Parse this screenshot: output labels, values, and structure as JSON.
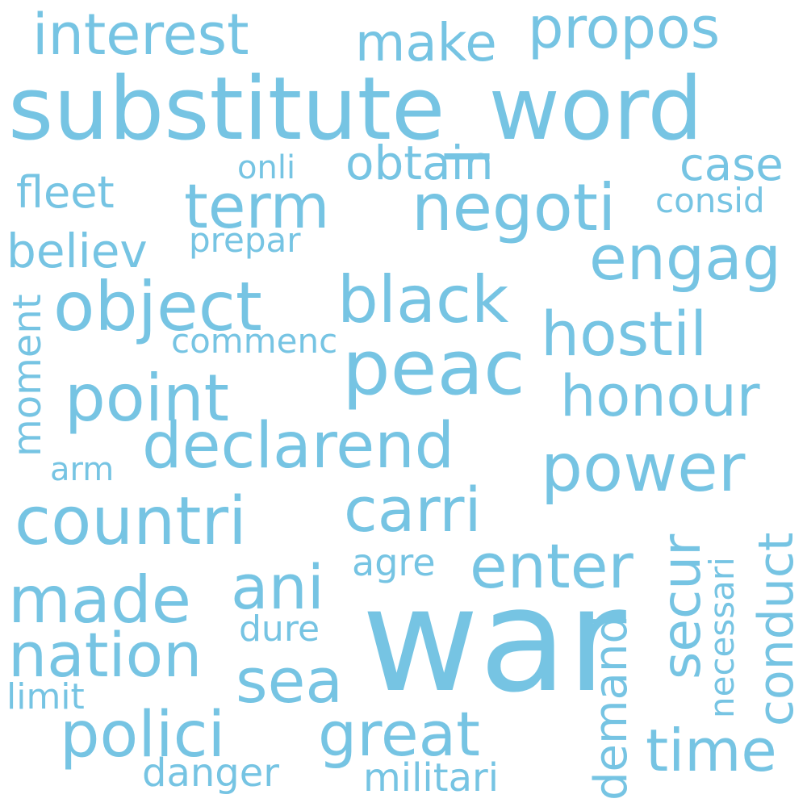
{
  "word_color": "#76c4e3",
  "background_color": "#ffffff",
  "words": {
    "substitute_word": "substitute_word",
    "war": "war",
    "peac": "peac",
    "propos": "propos",
    "interest": "interest",
    "make": "make",
    "negoti": "negoti",
    "term": "term",
    "obtain": "obtain",
    "onli": "onli",
    "case": "case",
    "consid": "consid",
    "fleet": "fleet",
    "believ": "believ",
    "prepar": "prepar",
    "engag": "engag",
    "object": "object",
    "black": "black",
    "hostil": "hostil",
    "commenc": "commenc",
    "moment": "moment",
    "point": "point",
    "honour": "honour",
    "declarend": "declarend",
    "power": "power",
    "arm": "arm",
    "countri": "countri",
    "carri": "carri",
    "conduct": "conduct",
    "secur": "secur",
    "necessari": "necessari",
    "ani": "ani",
    "agre": "agre",
    "enter": "enter",
    "made": "made",
    "dure": "dure",
    "nation": "nation",
    "sea": "sea",
    "demand": "demand",
    "limit": "limit",
    "polici": "polici",
    "great": "great",
    "time": "time",
    "danger": "danger",
    "militari": "militari"
  }
}
